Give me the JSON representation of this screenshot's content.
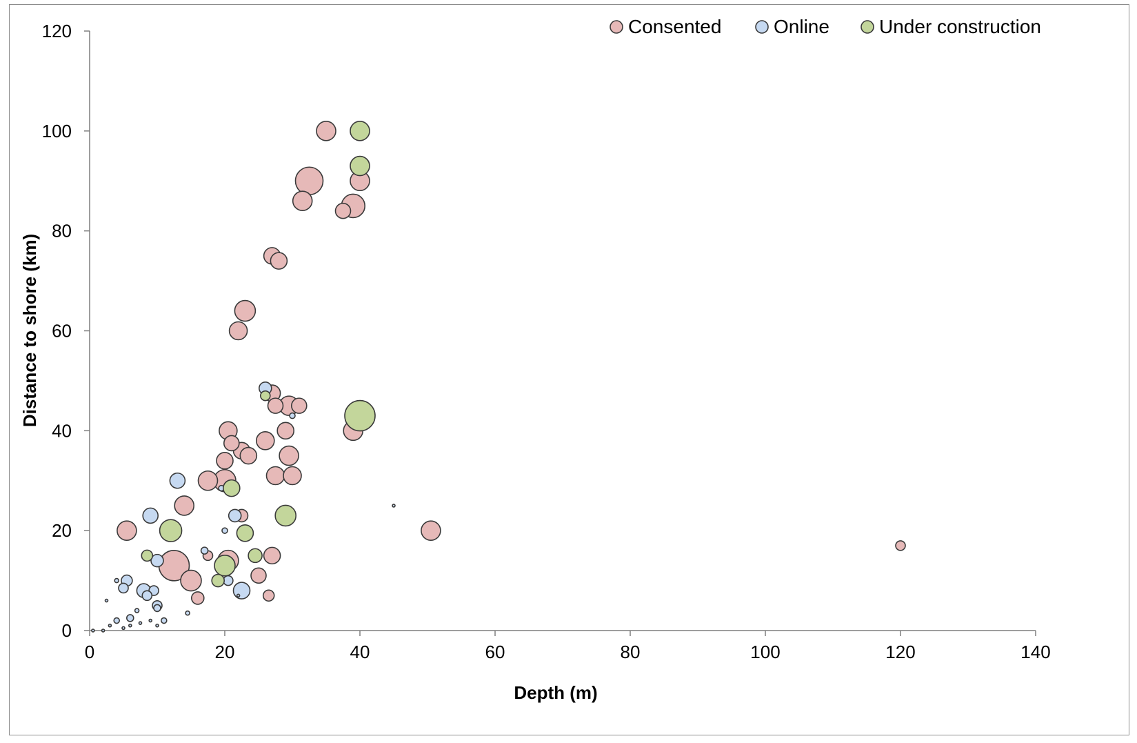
{
  "chart_data": {
    "type": "scatter",
    "title": "",
    "xlabel": "Depth (m)",
    "ylabel": "Distance to shore (km)",
    "xlim": [
      0,
      140
    ],
    "ylim": [
      0,
      120
    ],
    "x_ticks": [
      "0",
      "20",
      "40",
      "60",
      "80",
      "100",
      "120",
      "140"
    ],
    "y_ticks": [
      "0",
      "20",
      "40",
      "60",
      "80",
      "100",
      "120"
    ],
    "grid": false,
    "legend_position": "top-right",
    "bubble_size_note": "marker area encodes project size (relative, unlabeled)",
    "series": [
      {
        "name": "Consented",
        "color": "#e6b9b8",
        "points": [
          {
            "x": 35,
            "y": 100,
            "s": 14
          },
          {
            "x": 32.5,
            "y": 90,
            "s": 20
          },
          {
            "x": 40,
            "y": 90,
            "s": 14
          },
          {
            "x": 31.5,
            "y": 86,
            "s": 14
          },
          {
            "x": 37.5,
            "y": 84,
            "s": 11
          },
          {
            "x": 39,
            "y": 85,
            "s": 17
          },
          {
            "x": 27,
            "y": 75,
            "s": 12
          },
          {
            "x": 28,
            "y": 74,
            "s": 12
          },
          {
            "x": 23,
            "y": 64,
            "s": 15
          },
          {
            "x": 22,
            "y": 60,
            "s": 13
          },
          {
            "x": 27,
            "y": 47.5,
            "s": 12
          },
          {
            "x": 27.5,
            "y": 45,
            "s": 11
          },
          {
            "x": 29.5,
            "y": 45,
            "s": 14
          },
          {
            "x": 31,
            "y": 45,
            "s": 11
          },
          {
            "x": 39,
            "y": 40,
            "s": 14
          },
          {
            "x": 20.5,
            "y": 40,
            "s": 13
          },
          {
            "x": 21,
            "y": 37.5,
            "s": 11
          },
          {
            "x": 22.5,
            "y": 36,
            "s": 12
          },
          {
            "x": 23.5,
            "y": 35,
            "s": 12
          },
          {
            "x": 26,
            "y": 38,
            "s": 13
          },
          {
            "x": 29,
            "y": 40,
            "s": 12
          },
          {
            "x": 29.5,
            "y": 35,
            "s": 14
          },
          {
            "x": 20,
            "y": 34,
            "s": 12
          },
          {
            "x": 27.5,
            "y": 31,
            "s": 13
          },
          {
            "x": 30,
            "y": 31,
            "s": 13
          },
          {
            "x": 17.5,
            "y": 30,
            "s": 14
          },
          {
            "x": 20,
            "y": 30,
            "s": 16
          },
          {
            "x": 14,
            "y": 25,
            "s": 14
          },
          {
            "x": 22.5,
            "y": 23,
            "s": 9
          },
          {
            "x": 5.5,
            "y": 20,
            "s": 14
          },
          {
            "x": 50.5,
            "y": 20,
            "s": 14
          },
          {
            "x": 12.5,
            "y": 13,
            "s": 22
          },
          {
            "x": 20.5,
            "y": 14,
            "s": 15
          },
          {
            "x": 27,
            "y": 15,
            "s": 12
          },
          {
            "x": 17.5,
            "y": 15,
            "s": 7
          },
          {
            "x": 15,
            "y": 10,
            "s": 15
          },
          {
            "x": 25,
            "y": 11,
            "s": 11
          },
          {
            "x": 16,
            "y": 6.5,
            "s": 9
          },
          {
            "x": 26.5,
            "y": 7,
            "s": 8
          },
          {
            "x": 120,
            "y": 17,
            "s": 7
          }
        ]
      },
      {
        "name": "Online",
        "color": "#c6d9f1",
        "points": [
          {
            "x": 26,
            "y": 48.5,
            "s": 9
          },
          {
            "x": 30,
            "y": 43,
            "s": 4
          },
          {
            "x": 13,
            "y": 30,
            "s": 11
          },
          {
            "x": 19.5,
            "y": 28.5,
            "s": 4
          },
          {
            "x": 9,
            "y": 23,
            "s": 11
          },
          {
            "x": 21.5,
            "y": 23,
            "s": 9
          },
          {
            "x": 20,
            "y": 20,
            "s": 4
          },
          {
            "x": 17,
            "y": 16,
            "s": 5
          },
          {
            "x": 10,
            "y": 14,
            "s": 9
          },
          {
            "x": 5.5,
            "y": 10,
            "s": 8
          },
          {
            "x": 20.5,
            "y": 10,
            "s": 7
          },
          {
            "x": 5,
            "y": 8.5,
            "s": 7
          },
          {
            "x": 8,
            "y": 8,
            "s": 10
          },
          {
            "x": 9.5,
            "y": 8,
            "s": 7
          },
          {
            "x": 22.5,
            "y": 8,
            "s": 12
          },
          {
            "x": 8.5,
            "y": 7,
            "s": 7
          },
          {
            "x": 10,
            "y": 5,
            "s": 7
          },
          {
            "x": 10,
            "y": 4.5,
            "s": 5
          },
          {
            "x": 6,
            "y": 2.5,
            "s": 5
          },
          {
            "x": 4,
            "y": 2,
            "s": 4
          },
          {
            "x": 11,
            "y": 2,
            "s": 4
          },
          {
            "x": 4,
            "y": 10,
            "s": 3
          },
          {
            "x": 7,
            "y": 4,
            "s": 3
          },
          {
            "x": 14.5,
            "y": 3.5,
            "s": 3
          },
          {
            "x": 45,
            "y": 25,
            "s": 2
          },
          {
            "x": 3,
            "y": 1,
            "s": 2
          },
          {
            "x": 2.5,
            "y": 6,
            "s": 2
          },
          {
            "x": 0.5,
            "y": 0,
            "s": 2
          },
          {
            "x": 2,
            "y": 0,
            "s": 2
          },
          {
            "x": 5,
            "y": 0.5,
            "s": 2
          },
          {
            "x": 10,
            "y": 1,
            "s": 2
          },
          {
            "x": 6,
            "y": 1,
            "s": 2
          },
          {
            "x": 7.5,
            "y": 1.5,
            "s": 2
          },
          {
            "x": 9,
            "y": 2,
            "s": 2
          },
          {
            "x": 22,
            "y": 7,
            "s": 2
          }
        ]
      },
      {
        "name": "Under construction",
        "color": "#c3d69b",
        "points": [
          {
            "x": 40,
            "y": 100,
            "s": 14
          },
          {
            "x": 40,
            "y": 93,
            "s": 14
          },
          {
            "x": 26,
            "y": 47,
            "s": 7
          },
          {
            "x": 40,
            "y": 43,
            "s": 22
          },
          {
            "x": 21,
            "y": 28.5,
            "s": 12
          },
          {
            "x": 29,
            "y": 23,
            "s": 15
          },
          {
            "x": 12,
            "y": 20,
            "s": 16
          },
          {
            "x": 23,
            "y": 19.5,
            "s": 12
          },
          {
            "x": 8.5,
            "y": 15,
            "s": 8
          },
          {
            "x": 24.5,
            "y": 15,
            "s": 10
          },
          {
            "x": 20,
            "y": 13,
            "s": 15
          },
          {
            "x": 19,
            "y": 10,
            "s": 9
          }
        ]
      }
    ]
  }
}
